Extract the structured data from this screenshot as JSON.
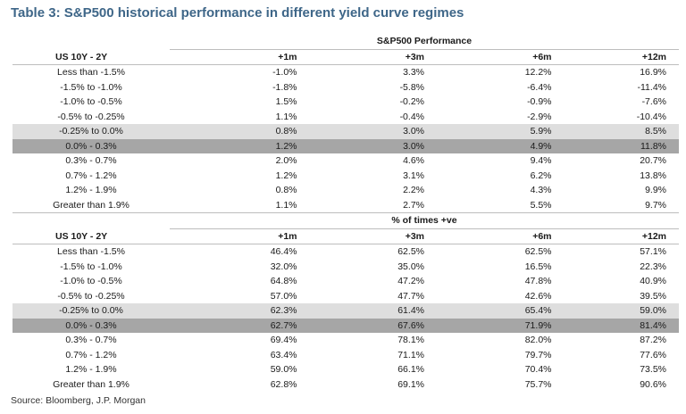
{
  "title": "Table 3: S&P500 historical performance in different yield curve regimes",
  "source": "Source: Bloomberg, J.P. Morgan",
  "row_label_header": "US 10Y - 2Y",
  "column_headers": [
    "+1m",
    "+3m",
    "+6m",
    "+12m"
  ],
  "sections": [
    {
      "group_header": "S&P500 Performance",
      "rows": [
        {
          "label": "Less than -1.5%",
          "values": [
            "-1.0%",
            "3.3%",
            "12.2%",
            "16.9%"
          ]
        },
        {
          "label": "-1.5% to -1.0%",
          "values": [
            "-1.8%",
            "-5.8%",
            "-6.4%",
            "-11.4%"
          ]
        },
        {
          "label": "-1.0% to -0.5%",
          "values": [
            "1.5%",
            "-0.2%",
            "-0.9%",
            "-7.6%"
          ]
        },
        {
          "label": "-0.5% to -0.25%",
          "values": [
            "1.1%",
            "-0.4%",
            "-2.9%",
            "-10.4%"
          ]
        },
        {
          "label": "-0.25% to 0.0%",
          "values": [
            "0.8%",
            "3.0%",
            "5.9%",
            "8.5%"
          ],
          "shade": "light"
        },
        {
          "label": "0.0% - 0.3%",
          "values": [
            "1.2%",
            "3.0%",
            "4.9%",
            "11.8%"
          ],
          "shade": "dark"
        },
        {
          "label": "0.3% - 0.7%",
          "values": [
            "2.0%",
            "4.6%",
            "9.4%",
            "20.7%"
          ]
        },
        {
          "label": "0.7% - 1.2%",
          "values": [
            "1.2%",
            "3.1%",
            "6.2%",
            "13.8%"
          ]
        },
        {
          "label": "1.2% - 1.9%",
          "values": [
            "0.8%",
            "2.2%",
            "4.3%",
            "9.9%"
          ]
        },
        {
          "label": "Greater than 1.9%",
          "values": [
            "1.1%",
            "2.7%",
            "5.5%",
            "9.7%"
          ]
        }
      ]
    },
    {
      "group_header": "% of times +ve",
      "rows": [
        {
          "label": "Less than -1.5%",
          "values": [
            "46.4%",
            "62.5%",
            "62.5%",
            "57.1%"
          ]
        },
        {
          "label": "-1.5% to -1.0%",
          "values": [
            "32.0%",
            "35.0%",
            "16.5%",
            "22.3%"
          ]
        },
        {
          "label": "-1.0% to -0.5%",
          "values": [
            "64.8%",
            "47.2%",
            "47.8%",
            "40.9%"
          ]
        },
        {
          "label": "-0.5% to -0.25%",
          "values": [
            "57.0%",
            "47.7%",
            "42.6%",
            "39.5%"
          ]
        },
        {
          "label": "-0.25% to 0.0%",
          "values": [
            "62.3%",
            "61.4%",
            "65.4%",
            "59.0%"
          ],
          "shade": "light"
        },
        {
          "label": "0.0% - 0.3%",
          "values": [
            "62.7%",
            "67.6%",
            "71.9%",
            "81.4%"
          ],
          "shade": "dark"
        },
        {
          "label": "0.3% - 0.7%",
          "values": [
            "69.4%",
            "78.1%",
            "82.0%",
            "87.2%"
          ]
        },
        {
          "label": "0.7% - 1.2%",
          "values": [
            "63.4%",
            "71.1%",
            "79.7%",
            "77.6%"
          ]
        },
        {
          "label": "1.2% - 1.9%",
          "values": [
            "59.0%",
            "66.1%",
            "70.4%",
            "73.5%"
          ]
        },
        {
          "label": "Greater than 1.9%",
          "values": [
            "62.8%",
            "69.1%",
            "75.7%",
            "90.6%"
          ]
        }
      ]
    }
  ]
}
